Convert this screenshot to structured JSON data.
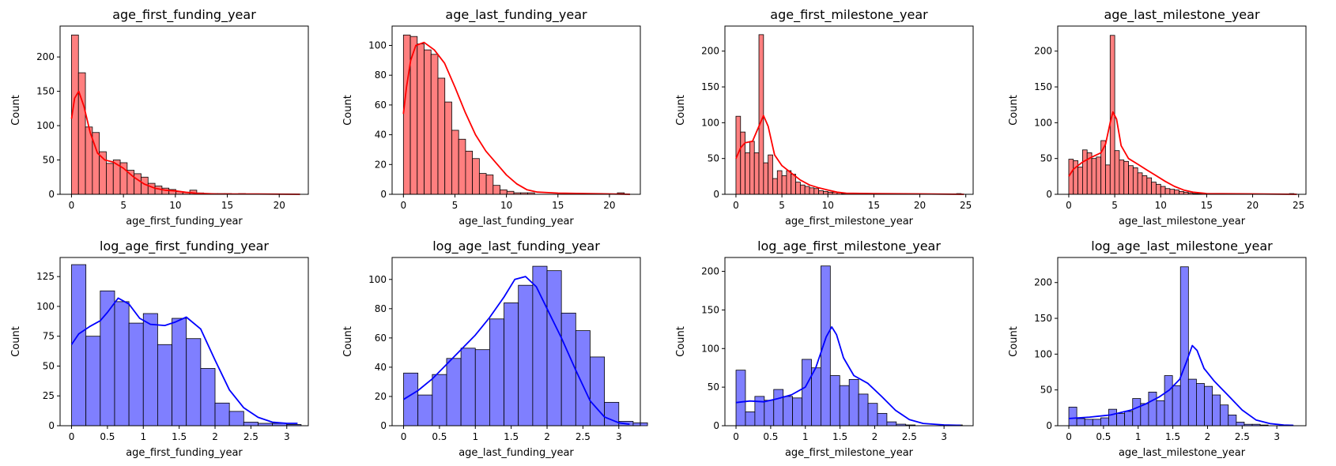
{
  "colors": {
    "top_row": "#ff0000",
    "bottom_row": "#0000ff",
    "bar_alpha": 0.5,
    "edge": "#000000"
  },
  "chart_data": [
    {
      "type": "bar",
      "subtype": "histogram_with_kde",
      "title": "age_first_funding_year",
      "xlabel": "age_first_funding_year",
      "ylabel": "Count",
      "color": "red",
      "bin_width": 0.67,
      "xlim": [
        -1.1,
        22.8
      ],
      "ylim": [
        0,
        245
      ],
      "xticks": [
        0,
        5,
        10,
        15,
        20
      ],
      "yticks": [
        0,
        50,
        100,
        150,
        200
      ],
      "counts": [
        232,
        177,
        98,
        90,
        62,
        45,
        50,
        46,
        35,
        30,
        25,
        16,
        12,
        9,
        7,
        4,
        3,
        6,
        2,
        1,
        1,
        1,
        1,
        0,
        1,
        0,
        0,
        0,
        0,
        0,
        0,
        0,
        0
      ],
      "kde": [
        [
          0,
          110
        ],
        [
          0.3,
          140
        ],
        [
          0.7,
          150
        ],
        [
          1.2,
          128
        ],
        [
          1.8,
          90
        ],
        [
          2.5,
          60
        ],
        [
          3.2,
          50
        ],
        [
          4.0,
          47
        ],
        [
          5.0,
          38
        ],
        [
          6.0,
          25
        ],
        [
          7.0,
          15
        ],
        [
          8.0,
          9
        ],
        [
          9.0,
          6
        ],
        [
          10.0,
          5
        ],
        [
          11.0,
          3
        ],
        [
          12.0,
          1.5
        ],
        [
          14.0,
          0.5
        ],
        [
          18.0,
          0.5
        ],
        [
          22.0,
          0
        ]
      ]
    },
    {
      "type": "bar",
      "subtype": "histogram_with_kde",
      "title": "age_last_funding_year",
      "xlabel": "age_last_funding_year",
      "ylabel": "Count",
      "color": "red",
      "bin_width": 0.67,
      "xlim": [
        -1.1,
        23.0
      ],
      "ylim": [
        0,
        113
      ],
      "xticks": [
        0,
        5,
        10,
        15,
        20
      ],
      "yticks": [
        0,
        20,
        40,
        60,
        80,
        100
      ],
      "counts": [
        107,
        106,
        101,
        97,
        94,
        78,
        62,
        43,
        37,
        29,
        24,
        14,
        13,
        6,
        3,
        2,
        1,
        1,
        1,
        0,
        0,
        0,
        0,
        0,
        0,
        0,
        0,
        0,
        0,
        0,
        0,
        1,
        0
      ],
      "kde": [
        [
          0,
          54
        ],
        [
          0.3,
          72
        ],
        [
          0.7,
          90
        ],
        [
          1.2,
          100
        ],
        [
          2.0,
          102
        ],
        [
          3.0,
          97
        ],
        [
          4.0,
          88
        ],
        [
          5.0,
          72
        ],
        [
          6.0,
          55
        ],
        [
          7.0,
          40
        ],
        [
          8.0,
          29
        ],
        [
          9.0,
          21
        ],
        [
          10.0,
          13
        ],
        [
          11.0,
          7
        ],
        [
          12.0,
          3
        ],
        [
          13.0,
          1.5
        ],
        [
          15.0,
          0.8
        ],
        [
          18.0,
          0.5
        ],
        [
          22.0,
          0
        ]
      ]
    },
    {
      "type": "bar",
      "subtype": "histogram_with_kde",
      "title": "age_first_milestone_year",
      "xlabel": "age_first_milestone_year",
      "ylabel": "Count",
      "color": "red",
      "bin_width": 0.5,
      "xlim": [
        -1.2,
        25.8
      ],
      "ylim": [
        0,
        235
      ],
      "xticks": [
        0,
        5,
        10,
        15,
        20,
        25
      ],
      "yticks": [
        0,
        50,
        100,
        150,
        200
      ],
      "counts": [
        109,
        87,
        58,
        74,
        58,
        223,
        44,
        55,
        22,
        33,
        26,
        33,
        28,
        17,
        13,
        11,
        9,
        8,
        5,
        4,
        3,
        3,
        2,
        1,
        1,
        0,
        0,
        0,
        0,
        0,
        0,
        0,
        0,
        0,
        0,
        0,
        0,
        0,
        0,
        0,
        0,
        0,
        0,
        0,
        0,
        0,
        0,
        0,
        1
      ],
      "kde": [
        [
          0,
          50
        ],
        [
          0.5,
          65
        ],
        [
          1.0,
          72
        ],
        [
          1.8,
          74
        ],
        [
          2.5,
          95
        ],
        [
          3.0,
          110
        ],
        [
          3.5,
          95
        ],
        [
          4.2,
          55
        ],
        [
          5.0,
          40
        ],
        [
          6.0,
          30
        ],
        [
          7.0,
          20
        ],
        [
          8.0,
          13
        ],
        [
          9.0,
          9
        ],
        [
          10.0,
          6
        ],
        [
          11.0,
          3
        ],
        [
          12.0,
          1.5
        ],
        [
          15.0,
          1
        ],
        [
          20.0,
          0.5
        ],
        [
          24.8,
          0
        ]
      ]
    },
    {
      "type": "bar",
      "subtype": "histogram_with_kde",
      "title": "age_last_milestone_year",
      "xlabel": "age_last_milestone_year",
      "ylabel": "Count",
      "color": "red",
      "bin_width": 0.5,
      "xlim": [
        -1.2,
        25.8
      ],
      "ylim": [
        0,
        235
      ],
      "xticks": [
        0,
        5,
        10,
        15,
        20,
        25
      ],
      "yticks": [
        0,
        50,
        100,
        150,
        200
      ],
      "counts": [
        49,
        47,
        38,
        62,
        58,
        50,
        52,
        75,
        41,
        222,
        61,
        48,
        46,
        40,
        37,
        30,
        26,
        23,
        17,
        14,
        11,
        8,
        7,
        6,
        4,
        3,
        2,
        1,
        1,
        0,
        0,
        0,
        0,
        0,
        0,
        0,
        0,
        0,
        0,
        0,
        0,
        0,
        0,
        0,
        0,
        0,
        0,
        0,
        1
      ],
      "kde": [
        [
          0,
          25
        ],
        [
          0.5,
          35
        ],
        [
          1.0,
          40
        ],
        [
          1.5,
          45
        ],
        [
          2.5,
          52
        ],
        [
          3.5,
          58
        ],
        [
          4.0,
          70
        ],
        [
          4.5,
          100
        ],
        [
          4.8,
          115
        ],
        [
          5.2,
          105
        ],
        [
          5.7,
          68
        ],
        [
          6.5,
          50
        ],
        [
          7.5,
          42
        ],
        [
          8.5,
          34
        ],
        [
          9.5,
          26
        ],
        [
          10.5,
          18
        ],
        [
          11.5,
          11
        ],
        [
          12.5,
          6
        ],
        [
          13.5,
          3
        ],
        [
          15.0,
          1
        ],
        [
          20.0,
          0.5
        ],
        [
          24.8,
          0
        ]
      ]
    },
    {
      "type": "bar",
      "subtype": "histogram_with_kde",
      "title": "log_age_first_funding_year",
      "xlabel": "age_first_funding_year",
      "ylabel": "Count",
      "color": "blue",
      "bin_width": 0.2,
      "xlim": [
        -0.16,
        3.3
      ],
      "ylim": [
        0,
        141
      ],
      "xticks": [
        0.0,
        0.5,
        1.0,
        1.5,
        2.0,
        2.5,
        3.0
      ],
      "yticks": [
        0,
        25,
        50,
        75,
        100,
        125
      ],
      "counts": [
        135,
        75,
        113,
        104,
        86,
        94,
        68,
        90,
        73,
        48,
        19,
        12,
        3,
        2,
        2,
        1
      ],
      "kde": [
        [
          0,
          68
        ],
        [
          0.1,
          77
        ],
        [
          0.25,
          83
        ],
        [
          0.4,
          88
        ],
        [
          0.5,
          95
        ],
        [
          0.65,
          107
        ],
        [
          0.8,
          102
        ],
        [
          0.95,
          90
        ],
        [
          1.1,
          85
        ],
        [
          1.3,
          84
        ],
        [
          1.45,
          87
        ],
        [
          1.6,
          91
        ],
        [
          1.8,
          81
        ],
        [
          2.0,
          55
        ],
        [
          2.2,
          30
        ],
        [
          2.4,
          15
        ],
        [
          2.6,
          7
        ],
        [
          2.8,
          3
        ],
        [
          3.0,
          2
        ],
        [
          3.15,
          2
        ]
      ]
    },
    {
      "type": "bar",
      "subtype": "histogram_with_kde",
      "title": "log_age_last_funding_year",
      "xlabel": "age_last_funding_year",
      "ylabel": "Count",
      "color": "blue",
      "bin_width": 0.2,
      "xlim": [
        -0.16,
        3.3
      ],
      "ylim": [
        0,
        115
      ],
      "xticks": [
        0.0,
        0.5,
        1.0,
        1.5,
        2.0,
        2.5,
        3.0
      ],
      "yticks": [
        0,
        20,
        40,
        60,
        80,
        100
      ],
      "counts": [
        36,
        21,
        35,
        46,
        53,
        52,
        73,
        84,
        96,
        109,
        106,
        77,
        65,
        47,
        16,
        3,
        2
      ],
      "kde": [
        [
          0,
          18
        ],
        [
          0.2,
          24
        ],
        [
          0.4,
          32
        ],
        [
          0.6,
          42
        ],
        [
          0.8,
          52
        ],
        [
          1.0,
          62
        ],
        [
          1.2,
          74
        ],
        [
          1.4,
          88
        ],
        [
          1.55,
          100
        ],
        [
          1.7,
          102
        ],
        [
          1.85,
          95
        ],
        [
          2.0,
          80
        ],
        [
          2.2,
          60
        ],
        [
          2.4,
          38
        ],
        [
          2.6,
          17
        ],
        [
          2.8,
          6
        ],
        [
          3.0,
          2
        ],
        [
          3.15,
          1
        ]
      ]
    },
    {
      "type": "bar",
      "subtype": "histogram_with_kde",
      "title": "log_age_first_milestone_year",
      "xlabel": "age_first_milestone_year",
      "ylabel": "Count",
      "color": "blue",
      "bin_width": 0.136,
      "xlim": [
        -0.16,
        3.42
      ],
      "ylim": [
        0,
        218
      ],
      "xticks": [
        0.0,
        0.5,
        1.0,
        1.5,
        2.0,
        2.5,
        3.0
      ],
      "yticks": [
        0,
        50,
        100,
        150,
        200
      ],
      "counts": [
        72,
        18,
        38,
        33,
        47,
        38,
        36,
        86,
        75,
        207,
        65,
        52,
        60,
        41,
        29,
        16,
        5,
        2,
        1,
        0,
        0,
        0,
        0,
        1
      ],
      "kde": [
        [
          0,
          30
        ],
        [
          0.2,
          32
        ],
        [
          0.4,
          31
        ],
        [
          0.6,
          35
        ],
        [
          0.8,
          40
        ],
        [
          1.0,
          50
        ],
        [
          1.15,
          75
        ],
        [
          1.3,
          115
        ],
        [
          1.38,
          128
        ],
        [
          1.45,
          118
        ],
        [
          1.55,
          88
        ],
        [
          1.7,
          65
        ],
        [
          1.9,
          55
        ],
        [
          2.1,
          38
        ],
        [
          2.3,
          20
        ],
        [
          2.5,
          8
        ],
        [
          2.7,
          3
        ],
        [
          3.0,
          1
        ],
        [
          3.24,
          0.5
        ]
      ]
    },
    {
      "type": "bar",
      "subtype": "histogram_with_kde",
      "title": "log_age_last_milestone_year",
      "xlabel": "age_last_milestone_year",
      "ylabel": "Count",
      "color": "blue",
      "bin_width": 0.115,
      "xlim": [
        -0.16,
        3.42
      ],
      "ylim": [
        0,
        235
      ],
      "xticks": [
        0.0,
        0.5,
        1.0,
        1.5,
        2.0,
        2.5,
        3.0
      ],
      "yticks": [
        0,
        50,
        100,
        150,
        200
      ],
      "counts": [
        26,
        10,
        9,
        9,
        11,
        23,
        17,
        20,
        38,
        31,
        47,
        35,
        70,
        56,
        222,
        65,
        59,
        55,
        43,
        29,
        15,
        5,
        2,
        2,
        1,
        0,
        0,
        1
      ],
      "kde": [
        [
          0,
          10
        ],
        [
          0.3,
          12
        ],
        [
          0.6,
          15
        ],
        [
          0.9,
          22
        ],
        [
          1.1,
          30
        ],
        [
          1.3,
          40
        ],
        [
          1.45,
          50
        ],
        [
          1.6,
          65
        ],
        [
          1.7,
          90
        ],
        [
          1.78,
          112
        ],
        [
          1.85,
          105
        ],
        [
          1.95,
          80
        ],
        [
          2.1,
          62
        ],
        [
          2.3,
          42
        ],
        [
          2.5,
          22
        ],
        [
          2.7,
          8
        ],
        [
          2.9,
          3
        ],
        [
          3.1,
          1
        ],
        [
          3.24,
          0.5
        ]
      ]
    }
  ]
}
